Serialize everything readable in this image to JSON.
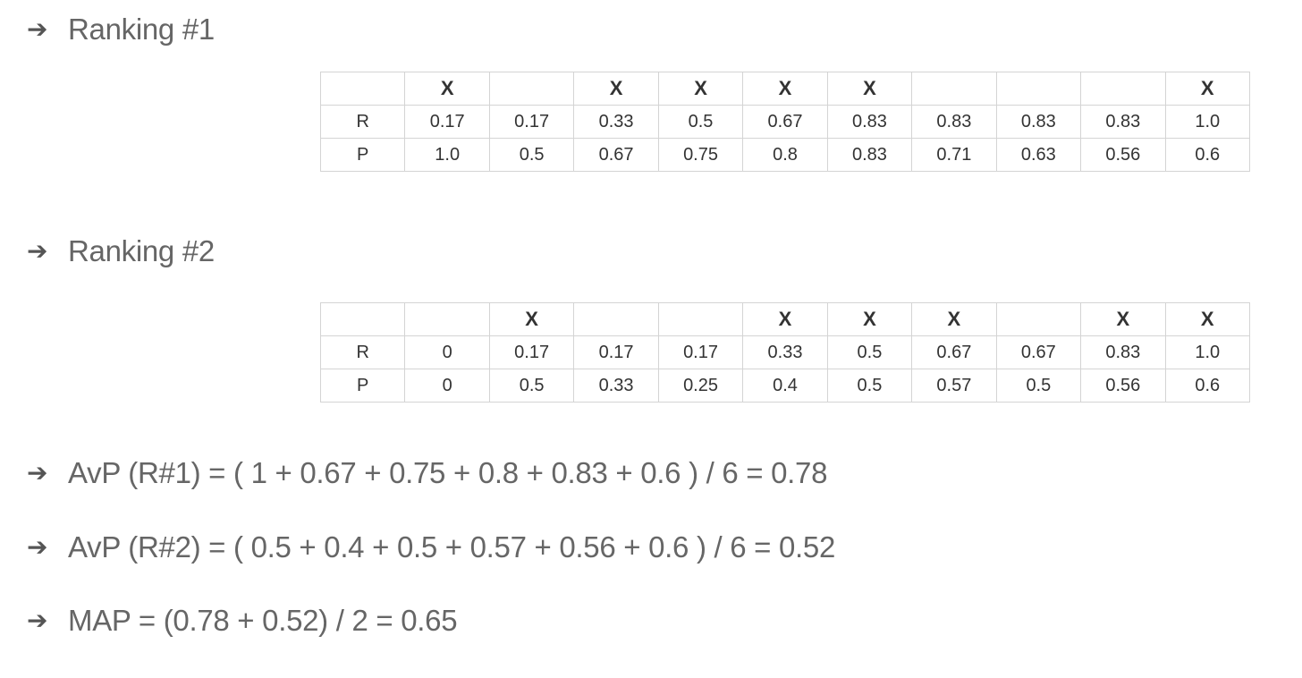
{
  "sections": [
    {
      "heading": "Ranking #1",
      "relevant_row": [
        "",
        "X",
        "",
        "X",
        "X",
        "X",
        "X",
        "",
        "",
        "",
        "X"
      ],
      "recall_row": [
        "R",
        "0.17",
        "0.17",
        "0.33",
        "0.5",
        "0.67",
        "0.83",
        "0.83",
        "0.83",
        "0.83",
        "1.0"
      ],
      "precision_row": [
        "P",
        "1.0",
        "0.5",
        "0.67",
        "0.75",
        "0.8",
        "0.83",
        "0.71",
        "0.63",
        "0.56",
        "0.6"
      ]
    },
    {
      "heading": "Ranking #2",
      "relevant_row": [
        "",
        "",
        "X",
        "",
        "",
        "X",
        "X",
        "X",
        "",
        "X",
        "X"
      ],
      "recall_row": [
        "R",
        "0",
        "0.17",
        "0.17",
        "0.17",
        "0.33",
        "0.5",
        "0.67",
        "0.67",
        "0.83",
        "1.0"
      ],
      "precision_row": [
        "P",
        "0",
        "0.5",
        "0.33",
        "0.25",
        "0.4",
        "0.5",
        "0.57",
        "0.5",
        "0.56",
        "0.6"
      ]
    }
  ],
  "formulas": {
    "avp_r1": "AvP (R#1) = ( 1 + 0.67 + 0.75 + 0.8 + 0.83 + 0.6 ) / 6 = 0.78",
    "avp_r2": "AvP (R#2) = ( 0.5 + 0.4 + 0.5 + 0.57 + 0.56 + 0.6 ) / 6 = 0.52",
    "map": "MAP = (0.78 + 0.52) / 2 = 0.65"
  },
  "icons": {
    "bullet": "arrow-right-icon"
  }
}
